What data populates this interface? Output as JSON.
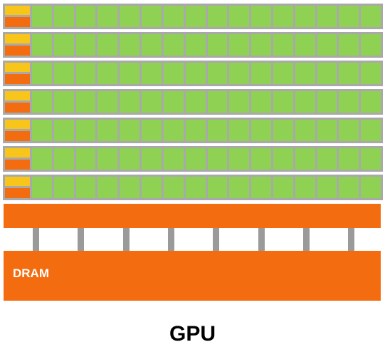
{
  "diagram": {
    "title": "GPU",
    "dram_label": "DRAM",
    "row_count": 7,
    "cores_per_row": 16,
    "memory_pins": 8,
    "colors": {
      "core": "#8fd152",
      "control": "#f8c51a",
      "cache": "#f36d10",
      "dram": "#f36d10",
      "frame": "#a9a9a9",
      "pin": "#9a9a9a"
    }
  }
}
